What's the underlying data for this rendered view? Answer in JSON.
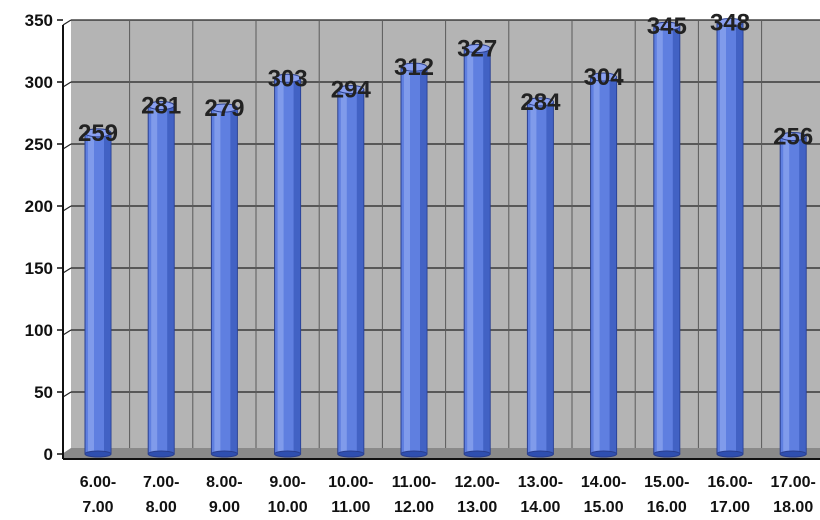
{
  "chart_data": {
    "type": "bar",
    "title": "",
    "xlabel": "",
    "ylabel": "",
    "categories": [
      [
        "6.00-",
        "7.00"
      ],
      [
        "7.00-",
        "8.00"
      ],
      [
        "8.00-",
        "9.00"
      ],
      [
        "9.00-",
        "10.00"
      ],
      [
        "10.00-",
        "11.00"
      ],
      [
        "11.00-",
        "12.00"
      ],
      [
        "12.00-",
        "13.00"
      ],
      [
        "13.00-",
        "14.00"
      ],
      [
        "14.00-",
        "15.00"
      ],
      [
        "15.00-",
        "16.00"
      ],
      [
        "16.00-",
        "17.00"
      ],
      [
        "17.00-",
        "18.00"
      ]
    ],
    "values": [
      259,
      281,
      279,
      303,
      294,
      312,
      327,
      284,
      304,
      345,
      348,
      256
    ],
    "ylim": [
      0,
      350
    ],
    "yticks": [
      0,
      50,
      100,
      150,
      200,
      250,
      300,
      350
    ],
    "grid": true,
    "legend": "none",
    "colors": {
      "bar": "#5f7fe0",
      "bar_dark": "#2f4fb0",
      "bar_light": "#8fa6f0",
      "plot_bg": "#b4b4b4",
      "grid": "#222222"
    }
  }
}
